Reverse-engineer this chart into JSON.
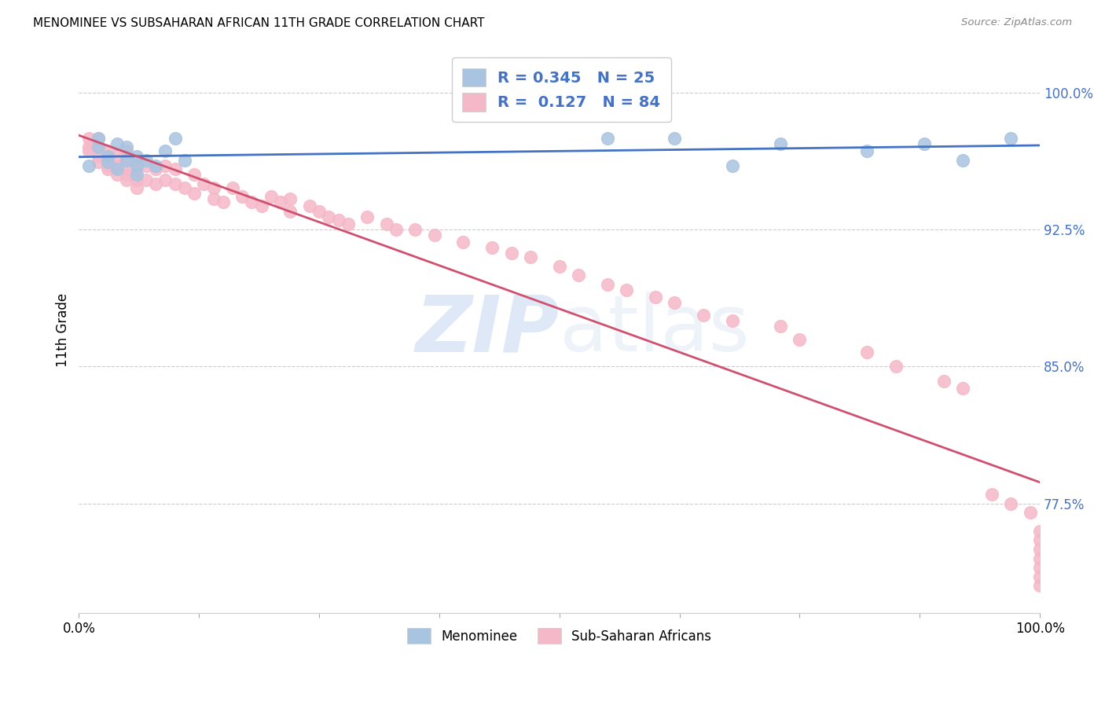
{
  "title": "MENOMINEE VS SUBSAHARAN AFRICAN 11TH GRADE CORRELATION CHART",
  "source": "Source: ZipAtlas.com",
  "ylabel": "11th Grade",
  "xlim": [
    0.0,
    1.0
  ],
  "ylim": [
    0.715,
    1.025
  ],
  "yticks": [
    0.775,
    0.85,
    0.925,
    1.0
  ],
  "ytick_labels": [
    "77.5%",
    "85.0%",
    "92.5%",
    "100.0%"
  ],
  "xticks": [
    0.0,
    0.125,
    0.25,
    0.375,
    0.5,
    0.625,
    0.75,
    0.875,
    1.0
  ],
  "xtick_labels": [
    "0.0%",
    "",
    "",
    "",
    "",
    "",
    "",
    "",
    "100.0%"
  ],
  "menominee_color": "#a8c4e0",
  "subsaharan_color": "#f5b8c8",
  "trendline_blue": "#4472c4",
  "trendline_pink": "#d05070",
  "R_menominee": 0.345,
  "N_menominee": 25,
  "R_subsaharan": 0.127,
  "N_subsaharan": 84,
  "menominee_x": [
    0.01,
    0.02,
    0.02,
    0.03,
    0.03,
    0.04,
    0.04,
    0.05,
    0.05,
    0.06,
    0.06,
    0.06,
    0.07,
    0.08,
    0.09,
    0.1,
    0.11,
    0.55,
    0.62,
    0.68,
    0.73,
    0.82,
    0.88,
    0.92,
    0.97
  ],
  "menominee_y": [
    0.96,
    0.97,
    0.975,
    0.965,
    0.962,
    0.972,
    0.958,
    0.97,
    0.963,
    0.965,
    0.96,
    0.955,
    0.963,
    0.96,
    0.968,
    0.975,
    0.963,
    0.975,
    0.975,
    0.96,
    0.972,
    0.968,
    0.972,
    0.963,
    0.975
  ],
  "subsaharan_x": [
    0.01,
    0.01,
    0.01,
    0.02,
    0.02,
    0.02,
    0.02,
    0.03,
    0.03,
    0.03,
    0.03,
    0.04,
    0.04,
    0.04,
    0.05,
    0.05,
    0.05,
    0.05,
    0.05,
    0.06,
    0.06,
    0.06,
    0.06,
    0.07,
    0.07,
    0.08,
    0.08,
    0.09,
    0.09,
    0.1,
    0.1,
    0.11,
    0.12,
    0.12,
    0.13,
    0.14,
    0.14,
    0.15,
    0.16,
    0.17,
    0.18,
    0.19,
    0.2,
    0.21,
    0.22,
    0.22,
    0.24,
    0.25,
    0.26,
    0.27,
    0.28,
    0.3,
    0.32,
    0.33,
    0.35,
    0.37,
    0.4,
    0.43,
    0.45,
    0.47,
    0.5,
    0.52,
    0.55,
    0.57,
    0.6,
    0.62,
    0.65,
    0.68,
    0.73,
    0.75,
    0.82,
    0.85,
    0.9,
    0.92,
    0.95,
    0.97,
    0.99,
    1.0,
    1.0,
    1.0,
    1.0,
    1.0,
    1.0,
    1.0
  ],
  "subsaharan_y": [
    0.975,
    0.97,
    0.968,
    0.975,
    0.97,
    0.965,
    0.962,
    0.968,
    0.965,
    0.96,
    0.958,
    0.965,
    0.96,
    0.955,
    0.968,
    0.963,
    0.958,
    0.955,
    0.952,
    0.963,
    0.958,
    0.952,
    0.948,
    0.96,
    0.952,
    0.958,
    0.95,
    0.96,
    0.952,
    0.958,
    0.95,
    0.948,
    0.955,
    0.945,
    0.95,
    0.948,
    0.942,
    0.94,
    0.948,
    0.943,
    0.94,
    0.938,
    0.943,
    0.94,
    0.942,
    0.935,
    0.938,
    0.935,
    0.932,
    0.93,
    0.928,
    0.932,
    0.928,
    0.925,
    0.925,
    0.922,
    0.918,
    0.915,
    0.912,
    0.91,
    0.905,
    0.9,
    0.895,
    0.892,
    0.888,
    0.885,
    0.878,
    0.875,
    0.872,
    0.865,
    0.858,
    0.85,
    0.842,
    0.838,
    0.78,
    0.775,
    0.77,
    0.76,
    0.755,
    0.75,
    0.745,
    0.74,
    0.735,
    0.73
  ]
}
